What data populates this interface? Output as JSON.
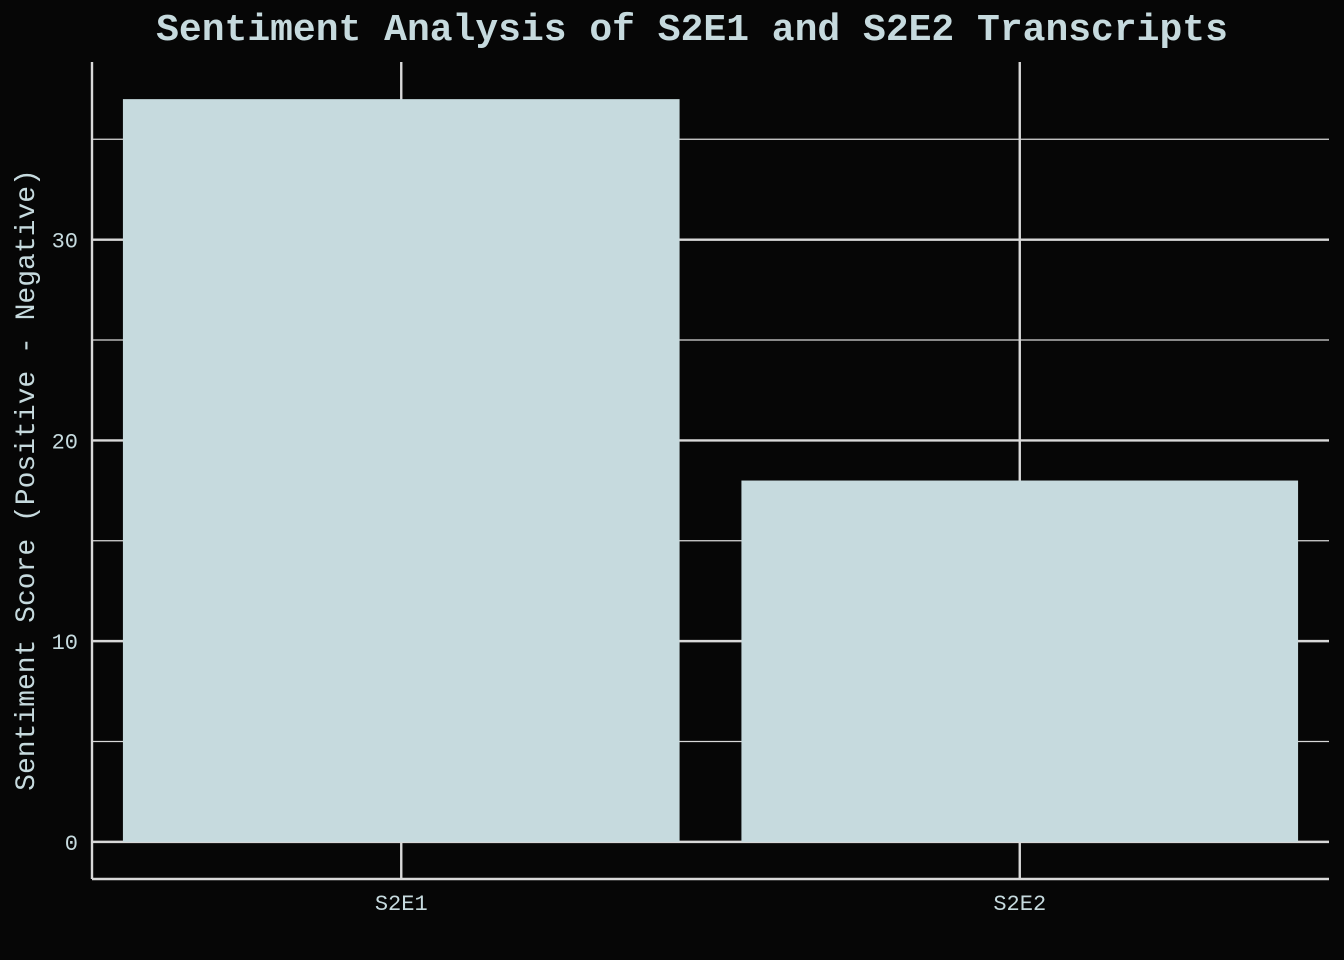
{
  "chart_data": {
    "type": "bar",
    "title": "Sentiment Analysis of S2E1 and S2E2 Transcripts",
    "xlabel": "",
    "ylabel": "Sentiment Score (Positive - Negative)",
    "categories": [
      "S2E1",
      "S2E2"
    ],
    "values": [
      37,
      18
    ],
    "ylim": [
      -1.85,
      38.85
    ],
    "yticks": [
      0,
      10,
      20,
      30
    ],
    "ytick_labels": [
      "0",
      "10",
      "20",
      "30"
    ],
    "minor_yticks": [
      5,
      15,
      25,
      35
    ],
    "grid": true,
    "legend": "none",
    "colors": {
      "background": "#060606",
      "bar": "#c6dade",
      "grid": "#d8d8d8",
      "text": "#c6dade",
      "axis": "#d8d8d8"
    }
  }
}
